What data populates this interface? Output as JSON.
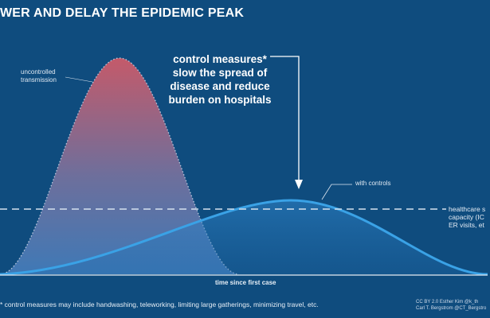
{
  "title": "WER AND DELAY THE EPIDEMIC PEAK",
  "labels": {
    "uncontrolled_line1": "uncontrolled",
    "uncontrolled_line2": "transmission",
    "control_line1": "control measures*",
    "control_line2": "slow the spread of",
    "control_line3": "disease and reduce",
    "control_line4": "burden on hospitals",
    "with_controls": "with controls",
    "capacity_line1": "healthcare s",
    "capacity_line2": "capacity (IC",
    "capacity_line3": "ER visits, et",
    "x_axis": "time since first case"
  },
  "footnote": "* control measures may include handwashing, teleworking, limiting large gatherings, minimizing travel, etc.",
  "credit": {
    "line1": "CC BY 2.0  Esther Kim  @k_th",
    "line2": "Carl T. Bergstrom  @CT_Bergstro"
  },
  "colors": {
    "background": "#0f4c7e",
    "uncontrolled_top": "#c45a6a",
    "uncontrolled_bottom": "#3f79b6",
    "with_controls_line": "#3aa2e6",
    "capacity_line": "#d6e2ee"
  }
}
